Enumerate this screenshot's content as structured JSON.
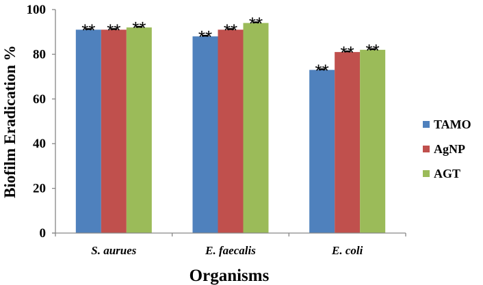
{
  "chart_data": {
    "type": "bar",
    "title": "",
    "xlabel": "Organisms",
    "ylabel": "Biofilm Eradication %",
    "categories": [
      "S. aurues",
      "E. faecalis",
      "E. coli"
    ],
    "series": [
      {
        "name": "TAMO",
        "color": "#4f81bd",
        "values": [
          91,
          88,
          73
        ],
        "annotations": [
          "**",
          "**",
          "**"
        ]
      },
      {
        "name": "AgNP",
        "color": "#c0504d",
        "values": [
          91,
          91,
          81
        ],
        "annotations": [
          "**",
          "**",
          "**"
        ]
      },
      {
        "name": "AGT",
        "color": "#9bbb59",
        "values": [
          92,
          94,
          82
        ],
        "annotations": [
          "**",
          "**",
          "**"
        ]
      }
    ],
    "ylim": [
      0,
      100
    ],
    "yticks": [
      "0",
      "20",
      "40",
      "60",
      "80",
      "100"
    ],
    "error_bars": true,
    "grid": false,
    "legend_position": "right"
  }
}
